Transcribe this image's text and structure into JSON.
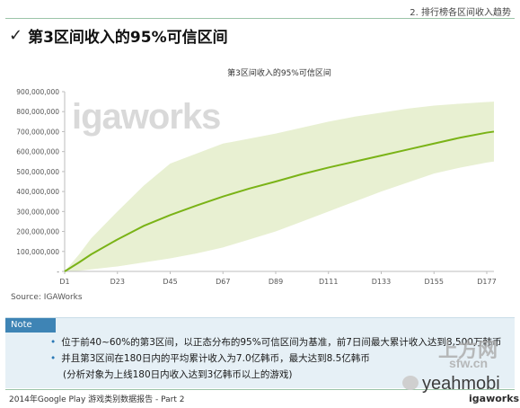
{
  "header": {
    "section_label": "2. 排行榜各区间收入趋势",
    "check_icon": "check-icon",
    "title": "第3区间收入的95%可信区间"
  },
  "watermark_text": "igaworks",
  "source": "Source: IGAWorks",
  "note": {
    "tag": "Note",
    "lines": [
      "位于前40~60%的第3区间，以正态分布的95%可信区间为基准，前7日间最大累计收入达到8,500万韩币",
      "并且第3区间在180日内的平均累计收入为7.0亿韩币，最大达到8.5亿韩币",
      "(分析对象为上线180日内收入达到3亿韩币以上的游戏)"
    ]
  },
  "footer": {
    "left": "2014年Google Play 游戏类别数据报告 - Part 2",
    "logo": "igaworks"
  },
  "overlay_watermarks": {
    "shangfang": "上方网",
    "sfw": "sfw.cn",
    "yeahmobi": "yeahmobi"
  },
  "colors": {
    "line": "#7ab317",
    "band": "#e8f0d2",
    "accent": "#3e84b5"
  },
  "chart_data": {
    "type": "area",
    "title": "第3区间收入的95%可信区间",
    "x_ticks": [
      "D1",
      "D23",
      "D45",
      "D67",
      "D89",
      "D111",
      "D133",
      "D155",
      "D177"
    ],
    "x_tick_days": [
      1,
      23,
      45,
      67,
      89,
      111,
      133,
      155,
      177
    ],
    "xlim": [
      1,
      180
    ],
    "ylim": [
      0,
      900000000
    ],
    "y_ticks": [
      0,
      100000000,
      200000000,
      300000000,
      400000000,
      500000000,
      600000000,
      700000000,
      800000000,
      900000000
    ],
    "y_tick_labels": [
      "-",
      "100,000,000",
      "200,000,000",
      "300,000,000",
      "400,000,000",
      "500,000,000",
      "600,000,000",
      "700,000,000",
      "800,000,000",
      "900,000,000"
    ],
    "grid": false,
    "series": [
      {
        "role": "mean",
        "x": [
          1,
          7,
          12,
          23,
          34,
          45,
          56,
          67,
          78,
          89,
          100,
          111,
          122,
          133,
          144,
          155,
          166,
          177,
          180
        ],
        "y": [
          0,
          45000000,
          85000000,
          160000000,
          228000000,
          282000000,
          330000000,
          375000000,
          415000000,
          450000000,
          487000000,
          520000000,
          550000000,
          580000000,
          610000000,
          640000000,
          670000000,
          695000000,
          700000000
        ]
      },
      {
        "role": "upper",
        "x": [
          1,
          7,
          12,
          23,
          34,
          45,
          56,
          67,
          78,
          89,
          100,
          111,
          122,
          133,
          144,
          155,
          166,
          177,
          180
        ],
        "y": [
          0,
          85000000,
          165000000,
          300000000,
          430000000,
          540000000,
          590000000,
          640000000,
          665000000,
          690000000,
          720000000,
          750000000,
          775000000,
          795000000,
          815000000,
          830000000,
          840000000,
          848000000,
          850000000
        ]
      },
      {
        "role": "lower",
        "x": [
          1,
          7,
          12,
          23,
          34,
          45,
          56,
          67,
          78,
          89,
          100,
          111,
          122,
          133,
          144,
          155,
          166,
          177,
          180
        ],
        "y": [
          0,
          3000000,
          10000000,
          25000000,
          45000000,
          65000000,
          90000000,
          120000000,
          160000000,
          200000000,
          250000000,
          300000000,
          350000000,
          400000000,
          445000000,
          490000000,
          520000000,
          545000000,
          550000000
        ]
      }
    ]
  }
}
